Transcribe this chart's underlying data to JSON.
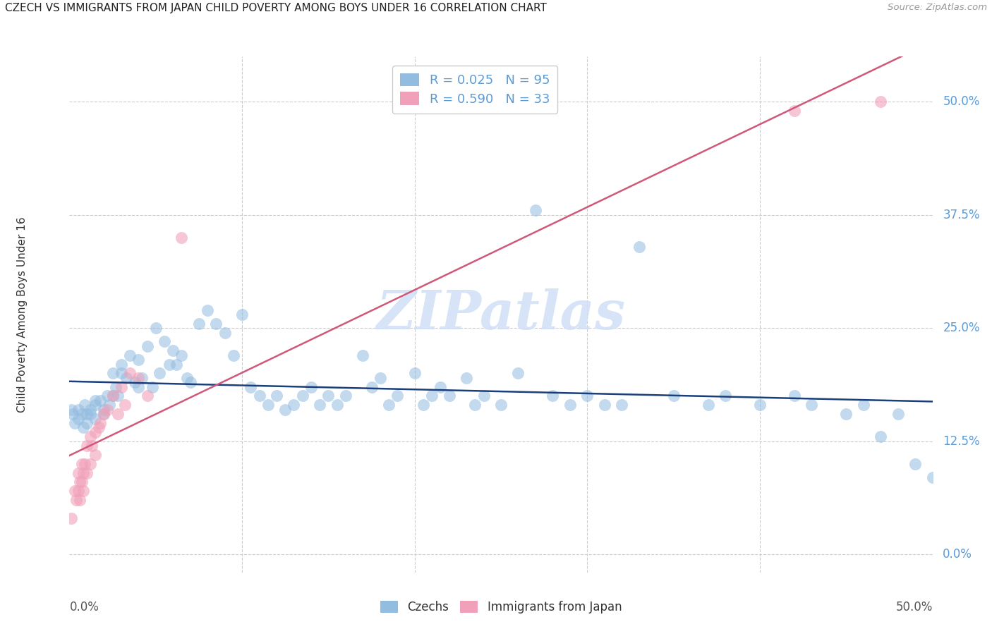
{
  "title": "CZECH VS IMMIGRANTS FROM JAPAN CHILD POVERTY AMONG BOYS UNDER 16 CORRELATION CHART",
  "source": "Source: ZipAtlas.com",
  "ylabel": "Child Poverty Among Boys Under 16",
  "ytick_labels": [
    "0.0%",
    "12.5%",
    "25.0%",
    "37.5%",
    "50.0%"
  ],
  "ytick_values": [
    0.0,
    0.125,
    0.25,
    0.375,
    0.5
  ],
  "xtick_labels": [
    "0.0%",
    "",
    "",
    "",
    "",
    "50.0%"
  ],
  "xtick_values": [
    0.0,
    0.1,
    0.2,
    0.3,
    0.4,
    0.5
  ],
  "xlim": [
    0.0,
    0.5
  ],
  "ylim": [
    -0.02,
    0.55
  ],
  "legend_label1": "Czechs",
  "legend_label2": "Immigrants from Japan",
  "blue_scatter_color": "#92bce0",
  "pink_scatter_color": "#f0a0b8",
  "blue_line_color": "#1a3f7a",
  "pink_line_color": "#d05878",
  "watermark": "ZIPatlas",
  "watermark_color": "#c8d8f0",
  "legend_R1": "R = 0.025",
  "legend_N1": "N = 95",
  "legend_R2": "R = 0.590",
  "legend_N2": "N = 33",
  "czechs_x": [
    0.001,
    0.002,
    0.003,
    0.005,
    0.005,
    0.007,
    0.008,
    0.009,
    0.01,
    0.01,
    0.012,
    0.012,
    0.015,
    0.015,
    0.015,
    0.018,
    0.02,
    0.02,
    0.022,
    0.023,
    0.025,
    0.025,
    0.027,
    0.028,
    0.03,
    0.03,
    0.033,
    0.035,
    0.038,
    0.04,
    0.04,
    0.042,
    0.045,
    0.048,
    0.05,
    0.052,
    0.055,
    0.058,
    0.06,
    0.062,
    0.065,
    0.068,
    0.07,
    0.075,
    0.08,
    0.085,
    0.09,
    0.095,
    0.1,
    0.105,
    0.11,
    0.115,
    0.12,
    0.125,
    0.13,
    0.135,
    0.14,
    0.145,
    0.15,
    0.155,
    0.16,
    0.17,
    0.175,
    0.18,
    0.185,
    0.19,
    0.2,
    0.205,
    0.21,
    0.215,
    0.22,
    0.23,
    0.235,
    0.24,
    0.25,
    0.26,
    0.27,
    0.28,
    0.29,
    0.3,
    0.31,
    0.32,
    0.33,
    0.35,
    0.37,
    0.38,
    0.4,
    0.42,
    0.43,
    0.45,
    0.46,
    0.47,
    0.48,
    0.49,
    0.5
  ],
  "czechs_y": [
    0.16,
    0.155,
    0.145,
    0.15,
    0.16,
    0.155,
    0.14,
    0.165,
    0.145,
    0.155,
    0.155,
    0.16,
    0.17,
    0.15,
    0.165,
    0.17,
    0.16,
    0.155,
    0.175,
    0.165,
    0.2,
    0.175,
    0.185,
    0.175,
    0.21,
    0.2,
    0.195,
    0.22,
    0.19,
    0.215,
    0.185,
    0.195,
    0.23,
    0.185,
    0.25,
    0.2,
    0.235,
    0.21,
    0.225,
    0.21,
    0.22,
    0.195,
    0.19,
    0.255,
    0.27,
    0.255,
    0.245,
    0.22,
    0.265,
    0.185,
    0.175,
    0.165,
    0.175,
    0.16,
    0.165,
    0.175,
    0.185,
    0.165,
    0.175,
    0.165,
    0.175,
    0.22,
    0.185,
    0.195,
    0.165,
    0.175,
    0.2,
    0.165,
    0.175,
    0.185,
    0.175,
    0.195,
    0.165,
    0.175,
    0.165,
    0.2,
    0.38,
    0.175,
    0.165,
    0.175,
    0.165,
    0.165,
    0.34,
    0.175,
    0.165,
    0.175,
    0.165,
    0.175,
    0.165,
    0.155,
    0.165,
    0.13,
    0.155,
    0.1,
    0.085
  ],
  "japan_x": [
    0.001,
    0.003,
    0.004,
    0.005,
    0.005,
    0.006,
    0.006,
    0.007,
    0.007,
    0.008,
    0.008,
    0.009,
    0.01,
    0.01,
    0.012,
    0.012,
    0.013,
    0.015,
    0.015,
    0.017,
    0.018,
    0.02,
    0.022,
    0.025,
    0.028,
    0.03,
    0.032,
    0.035,
    0.04,
    0.045,
    0.065,
    0.42,
    0.47
  ],
  "japan_y": [
    0.04,
    0.07,
    0.06,
    0.09,
    0.07,
    0.08,
    0.06,
    0.1,
    0.08,
    0.09,
    0.07,
    0.1,
    0.12,
    0.09,
    0.13,
    0.1,
    0.12,
    0.135,
    0.11,
    0.14,
    0.145,
    0.155,
    0.16,
    0.175,
    0.155,
    0.185,
    0.165,
    0.2,
    0.195,
    0.175,
    0.35,
    0.49,
    0.5
  ]
}
